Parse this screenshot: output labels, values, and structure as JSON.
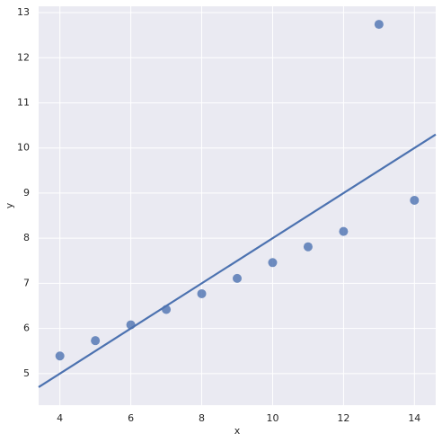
{
  "chart_data": {
    "type": "scatter",
    "x_label": "x",
    "y_label": "y",
    "x": [
      4,
      5,
      6,
      7,
      8,
      9,
      10,
      11,
      12,
      13,
      14
    ],
    "series": [
      {
        "color": "#4c72b0",
        "values": [
          5.39,
          5.73,
          6.08,
          6.42,
          6.77,
          7.11,
          7.46,
          7.81,
          8.15,
          12.74,
          8.84
        ]
      }
    ],
    "fit_line": {
      "color": "#4c72b0",
      "x": [
        3.4,
        14.6
      ],
      "values": [
        4.7,
        10.3
      ]
    },
    "xlim": [
      3.4,
      14.6
    ],
    "ylim": [
      4.3,
      13.14
    ],
    "xticks": [
      4,
      6,
      8,
      10,
      12,
      14
    ],
    "yticks": [
      5,
      6,
      7,
      8,
      9,
      10,
      11,
      12,
      13
    ],
    "grid": true,
    "background": "#eaeaf2"
  }
}
